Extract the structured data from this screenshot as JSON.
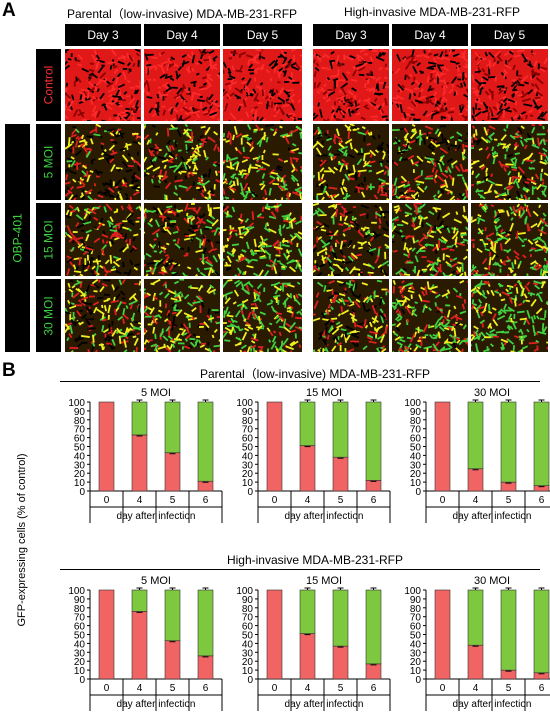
{
  "panel_a": {
    "letter": "A",
    "groups": [
      {
        "title": "Parental（low-invasive) MDA-MB-231-RFP",
        "days": [
          "Day 3",
          "Day 4",
          "Day 5"
        ]
      },
      {
        "title": "High-invasive MDA-MB-231-RFP",
        "days": [
          "Day 3",
          "Day 4",
          "Day 5"
        ]
      }
    ],
    "side_label": "OBP-401",
    "rows": [
      {
        "label": "Control",
        "color": "#ff3030",
        "greenness": [
          0.0,
          0.0,
          0.0
        ]
      },
      {
        "label": "5 MOI",
        "color": "#3cd23c",
        "greenness": [
          0.15,
          0.25,
          0.55
        ]
      },
      {
        "label": "15 MOI",
        "color": "#3cd23c",
        "greenness": [
          0.2,
          0.35,
          0.6
        ]
      },
      {
        "label": "30 MOI",
        "color": "#3cd23c",
        "greenness": [
          0.3,
          0.45,
          0.7
        ]
      }
    ],
    "high_invasive_greenness": [
      [
        0,
        0,
        0
      ],
      [
        0.2,
        0.35,
        0.55
      ],
      [
        0.25,
        0.45,
        0.6
      ],
      [
        0.35,
        0.55,
        0.8
      ]
    ]
  },
  "panel_b": {
    "letter": "B",
    "ylabel": "GFP-expressing cells (% of control)",
    "xlabel": "day after infection",
    "colors": {
      "red": "#f06464",
      "green": "#7ec840"
    },
    "sections": [
      {
        "title": "Parental（low-invasive) MDA-MB-231-RFP"
      },
      {
        "title": "High-invasive MDA-MB-231-RFP"
      }
    ]
  },
  "chart_data": [
    {
      "type": "bar",
      "title": "5 MOI",
      "group": "Parental（low-invasive) MDA-MB-231-RFP",
      "categories": [
        "0",
        "4",
        "5",
        "6"
      ],
      "series": [
        {
          "values": [
            100,
            63,
            43,
            11
          ]
        },
        {
          "values": [
            0,
            37,
            57,
            89
          ]
        }
      ],
      "ylim": [
        0,
        100
      ],
      "yticks": [
        0,
        10,
        20,
        30,
        40,
        50,
        60,
        70,
        80,
        90,
        100
      ],
      "xlabel": "day after infection",
      "ylabel": "GFP-expressing cells (% of control)"
    },
    {
      "type": "bar",
      "title": "15 MOI",
      "group": "Parental（low-invasive) MDA-MB-231-RFP",
      "categories": [
        "0",
        "4",
        "5",
        "6"
      ],
      "series": [
        {
          "values": [
            100,
            51,
            38,
            12
          ]
        },
        {
          "values": [
            0,
            49,
            62,
            88
          ]
        }
      ],
      "ylim": [
        0,
        100
      ],
      "yticks": [
        0,
        10,
        20,
        30,
        40,
        50,
        60,
        70,
        80,
        90,
        100
      ],
      "xlabel": "day after infection"
    },
    {
      "type": "bar",
      "title": "30 MOI",
      "group": "Parental（low-invasive) MDA-MB-231-RFP",
      "categories": [
        "0",
        "4",
        "5",
        "6"
      ],
      "series": [
        {
          "values": [
            100,
            25,
            10,
            6
          ]
        },
        {
          "values": [
            0,
            75,
            90,
            94
          ]
        }
      ],
      "ylim": [
        0,
        100
      ],
      "yticks": [
        0,
        10,
        20,
        30,
        40,
        50,
        60,
        70,
        80,
        90,
        100
      ],
      "xlabel": "day after infection"
    },
    {
      "type": "bar",
      "title": "5 MOI",
      "group": "High-invasive MDA-MB-231-RFP",
      "categories": [
        "0",
        "4",
        "5",
        "6"
      ],
      "series": [
        {
          "values": [
            100,
            76,
            43,
            26
          ]
        },
        {
          "values": [
            0,
            24,
            57,
            74
          ]
        }
      ],
      "ylim": [
        0,
        100
      ],
      "yticks": [
        0,
        10,
        20,
        30,
        40,
        50,
        60,
        70,
        80,
        90,
        100
      ],
      "xlabel": "day after infection"
    },
    {
      "type": "bar",
      "title": "15 MOI",
      "group": "High-invasive MDA-MB-231-RFP",
      "categories": [
        "0",
        "4",
        "5",
        "6"
      ],
      "series": [
        {
          "values": [
            100,
            51,
            37,
            17
          ]
        },
        {
          "values": [
            0,
            49,
            63,
            83
          ]
        }
      ],
      "ylim": [
        0,
        100
      ],
      "yticks": [
        0,
        10,
        20,
        30,
        40,
        50,
        60,
        70,
        80,
        90,
        100
      ],
      "xlabel": "day after infection"
    },
    {
      "type": "bar",
      "title": "30 MOI",
      "group": "High-invasive MDA-MB-231-RFP",
      "categories": [
        "0",
        "4",
        "5",
        "6"
      ],
      "series": [
        {
          "values": [
            100,
            38,
            10,
            7
          ]
        },
        {
          "values": [
            0,
            62,
            90,
            93
          ]
        }
      ],
      "ylim": [
        0,
        100
      ],
      "yticks": [
        0,
        10,
        20,
        30,
        40,
        50,
        60,
        70,
        80,
        90,
        100
      ],
      "xlabel": "day after infection"
    }
  ]
}
